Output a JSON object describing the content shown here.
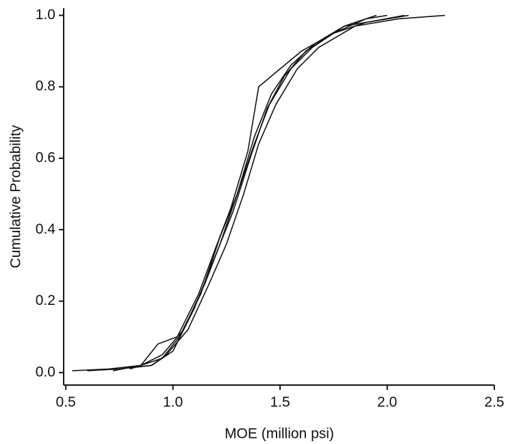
{
  "chart_data": {
    "type": "line",
    "x_label": "MOE (million psi)",
    "y_label": "Cumulative Probability",
    "xlim": [
      0.49,
      2.5
    ],
    "ylim": [
      -0.035,
      1.02
    ],
    "xticks": [
      0.5,
      {
        "value": 1,
        "label": "1.0"
      },
      1.5,
      {
        "value": 2,
        "label": "2.0"
      },
      2.5
    ],
    "yticks": [
      {
        "value": 0,
        "label": "0.0"
      },
      0.2,
      0.4,
      0.6,
      0.8,
      {
        "value": 1,
        "label": "1.0"
      }
    ],
    "grid": false,
    "series": [
      {
        "color": "#111111",
        "x": [
          0.53,
          0.7,
          0.85,
          0.95,
          1.05,
          1.15,
          1.22,
          1.3,
          1.38,
          1.45,
          1.55,
          1.65,
          1.8,
          2.0,
          2.1
        ],
        "values": [
          0.005,
          0.01,
          0.02,
          0.05,
          0.12,
          0.25,
          0.36,
          0.5,
          0.64,
          0.75,
          0.85,
          0.91,
          0.97,
          0.99,
          1.0
        ]
      },
      {
        "color": "#111111",
        "x": [
          0.6,
          0.75,
          0.9,
          0.97,
          1.07,
          1.17,
          1.25,
          1.33,
          1.4,
          1.48,
          1.58,
          1.68,
          1.85,
          2.05,
          2.27
        ],
        "values": [
          0.005,
          0.01,
          0.02,
          0.05,
          0.12,
          0.25,
          0.36,
          0.5,
          0.64,
          0.75,
          0.85,
          0.91,
          0.97,
          0.99,
          1.0
        ]
      },
      {
        "color": "#111111",
        "x": [
          0.72,
          0.85,
          0.93,
          1.02,
          1.12,
          1.2,
          1.27,
          1.35,
          1.4,
          1.48,
          1.6,
          1.75,
          1.9,
          2.0
        ],
        "values": [
          0.005,
          0.02,
          0.08,
          0.1,
          0.22,
          0.35,
          0.46,
          0.62,
          0.8,
          0.84,
          0.9,
          0.95,
          0.99,
          1.0
        ]
      },
      {
        "color": "#111111",
        "x": [
          0.75,
          0.9,
          1.0,
          1.1,
          1.2,
          1.28,
          1.36,
          1.44,
          1.52,
          1.62,
          1.75,
          1.9,
          2.08
        ],
        "values": [
          0.01,
          0.02,
          0.06,
          0.18,
          0.33,
          0.45,
          0.6,
          0.74,
          0.83,
          0.9,
          0.95,
          0.98,
          1.0
        ]
      },
      {
        "color": "#111111",
        "x": [
          0.8,
          0.95,
          1.03,
          1.13,
          1.22,
          1.3,
          1.38,
          1.46,
          1.55,
          1.66,
          1.8,
          1.95
        ],
        "values": [
          0.01,
          0.04,
          0.1,
          0.22,
          0.38,
          0.5,
          0.66,
          0.78,
          0.86,
          0.92,
          0.97,
          1.0
        ]
      }
    ]
  }
}
